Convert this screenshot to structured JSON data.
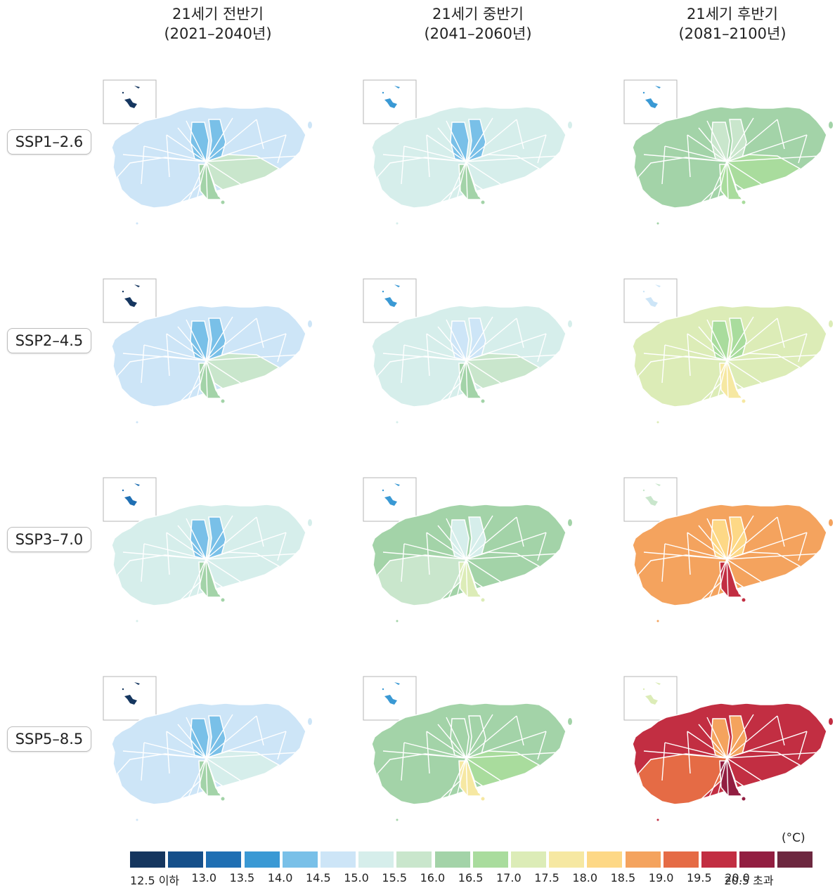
{
  "columns": [
    {
      "line1": "21세기 전반기",
      "line2": "(2021–2040년)"
    },
    {
      "line1": "21세기 중반기",
      "line2": "(2041–2060년)"
    },
    {
      "line1": "21세기 후반기",
      "line2": "(2081–2100년)"
    }
  ],
  "rows": [
    {
      "label": "SSP1–2.6"
    },
    {
      "label": "SSP2–4.5"
    },
    {
      "label": "SSP3–7.0"
    },
    {
      "label": "SSP5–8.5"
    }
  ],
  "palette": [
    "#15365f",
    "#154f8a",
    "#1f6fb3",
    "#3a99d4",
    "#79c0e8",
    "#cde5f7",
    "#d6eeeb",
    "#c9e6cc",
    "#a3d3a8",
    "#a9dc9d",
    "#dcecb7",
    "#f6e8a2",
    "#fdd886",
    "#f4a35e",
    "#e56b45",
    "#c22e42",
    "#921e41",
    "#6d2840"
  ],
  "legend": {
    "unit": "(°C)",
    "labels": [
      "12.5 이하",
      "13.0",
      "13.5",
      "14.0",
      "14.5",
      "15.0",
      "15.5",
      "16.0",
      "16.5",
      "17.0",
      "17.5",
      "18.0",
      "18.5",
      "19.0",
      "19.5",
      "20.0",
      "20.5 초과"
    ]
  },
  "maps": [
    [
      {
        "base": 5,
        "north": 4,
        "southeast": 7,
        "southwest": 5,
        "south": 8,
        "inset": 0
      },
      {
        "base": 6,
        "north": 4,
        "southeast": 6,
        "southwest": 6,
        "south": 8,
        "inset": 3
      },
      {
        "base": 8,
        "north": 7,
        "southeast": 9,
        "southwest": 8,
        "south": 9,
        "inset": 3
      }
    ],
    [
      {
        "base": 5,
        "north": 4,
        "southeast": 7,
        "southwest": 5,
        "south": 8,
        "inset": 0
      },
      {
        "base": 6,
        "north": 5,
        "southeast": 7,
        "southwest": 6,
        "south": 8,
        "inset": 3
      },
      {
        "base": 10,
        "north": 9,
        "southeast": 10,
        "southwest": 10,
        "south": 11,
        "inset": 5
      }
    ],
    [
      {
        "base": 6,
        "north": 4,
        "southeast": 6,
        "southwest": 6,
        "south": 8,
        "inset": 2
      },
      {
        "base": 8,
        "north": 6,
        "southeast": 8,
        "southwest": 7,
        "south": 10,
        "inset": 3
      },
      {
        "base": 13,
        "north": 12,
        "southeast": 13,
        "southwest": 13,
        "south": 15,
        "inset": 7
      }
    ],
    [
      {
        "base": 5,
        "north": 4,
        "southeast": 6,
        "southwest": 5,
        "south": 8,
        "inset": 0
      },
      {
        "base": 8,
        "north": 8,
        "southeast": 9,
        "southwest": 8,
        "south": 11,
        "inset": 3
      },
      {
        "base": 15,
        "north": 13,
        "southeast": 15,
        "southwest": 14,
        "south": 16,
        "inset": 10
      }
    ]
  ]
}
